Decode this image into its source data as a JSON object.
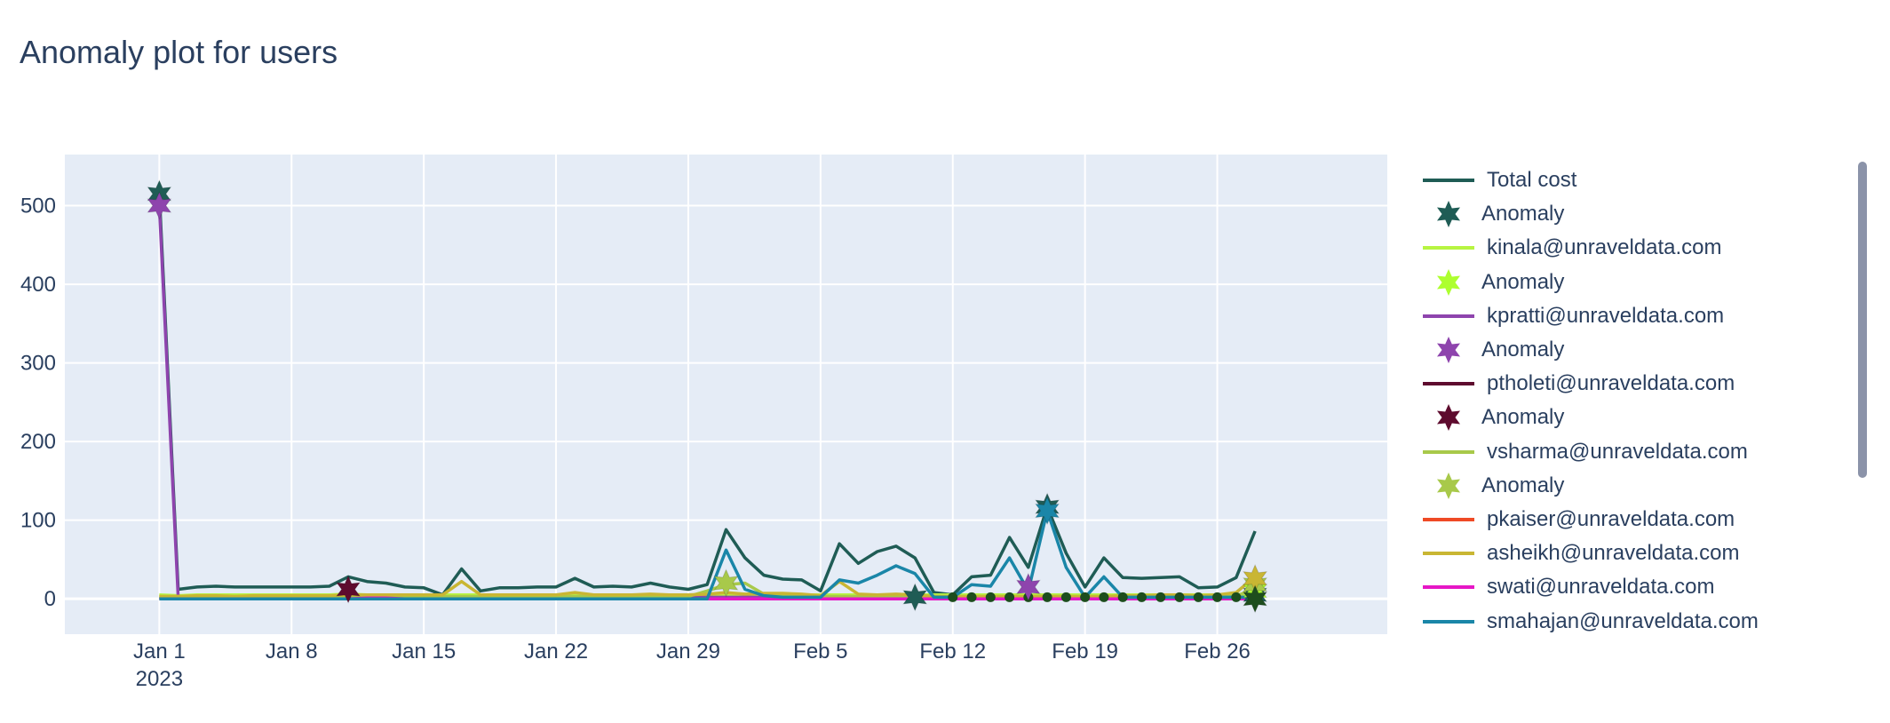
{
  "chart_data": {
    "type": "line",
    "title": "Anomaly plot for users",
    "xlabel": "",
    "ylabel": "",
    "x_start": "2023-01-01",
    "x_end": "2023-02-28",
    "xlim": [
      "2022-12-27",
      "2023-03-07"
    ],
    "ylim": [
      -45,
      565
    ],
    "x_ticks": [
      {
        "date": "2023-01-01",
        "label": "Jan 1",
        "sublabel": "2023"
      },
      {
        "date": "2023-01-08",
        "label": "Jan 8"
      },
      {
        "date": "2023-01-15",
        "label": "Jan 15"
      },
      {
        "date": "2023-01-22",
        "label": "Jan 22"
      },
      {
        "date": "2023-01-29",
        "label": "Jan 29"
      },
      {
        "date": "2023-02-05",
        "label": "Feb 5"
      },
      {
        "date": "2023-02-12",
        "label": "Feb 12"
      },
      {
        "date": "2023-02-19",
        "label": "Feb 19"
      },
      {
        "date": "2023-02-26",
        "label": "Feb 26"
      }
    ],
    "y_ticks": [
      0,
      100,
      200,
      300,
      400,
      500
    ],
    "grid": true,
    "legend_position": "right",
    "series": [
      {
        "name": "Total cost",
        "color": "#1f5c55",
        "values": [
          515,
          12,
          15,
          16,
          15,
          15,
          15,
          15,
          15,
          16,
          28,
          22,
          20,
          15,
          14,
          5,
          38,
          10,
          14,
          14,
          15,
          15,
          26,
          15,
          16,
          15,
          20,
          15,
          12,
          18,
          88,
          52,
          30,
          25,
          24,
          10,
          70,
          45,
          60,
          67,
          52,
          8,
          5,
          28,
          30,
          78,
          40,
          117,
          58,
          15,
          52,
          27,
          26,
          27,
          28,
          14,
          15,
          27,
          86
        ]
      },
      {
        "name": "kinala@unraveldata.com",
        "color": "#b7f542",
        "values": [
          5,
          4,
          5,
          5,
          5,
          5,
          5,
          5,
          5,
          5,
          6,
          5,
          5,
          5,
          5,
          5,
          5,
          5,
          5,
          5,
          5,
          5,
          5,
          5,
          5,
          5,
          5,
          5,
          5,
          5,
          5,
          5,
          5,
          5,
          5,
          5,
          5,
          5,
          5,
          5,
          5,
          5,
          5,
          5,
          5,
          5,
          5,
          5,
          5,
          5,
          5,
          5,
          5,
          5,
          5,
          5,
          5,
          5,
          8
        ]
      },
      {
        "name": "kpratti@unraveldata.com",
        "color": "#8e44ad",
        "values": [
          500,
          2,
          2,
          2,
          2,
          2,
          2,
          2,
          2,
          2,
          2,
          2,
          2,
          2,
          2,
          2,
          2,
          2,
          2,
          2,
          2,
          2,
          2,
          2,
          2,
          2,
          2,
          2,
          2,
          2,
          2,
          2,
          2,
          2,
          2,
          2,
          2,
          2,
          2,
          2,
          2,
          2,
          2,
          2,
          2,
          2,
          2,
          2,
          2,
          2,
          2,
          2,
          2,
          2,
          2,
          2,
          2,
          2,
          2
        ]
      },
      {
        "name": "ptholeti@unraveldata.com",
        "color": "#5e0b2e",
        "values": [
          2,
          0,
          0,
          0,
          0,
          0,
          0,
          0,
          0,
          0,
          0,
          0,
          0,
          0,
          0,
          0,
          0,
          0,
          0,
          0,
          0,
          0,
          0,
          0,
          0,
          0,
          0,
          0,
          0,
          0,
          0,
          0,
          0,
          0,
          0,
          0,
          0,
          0,
          0,
          0,
          0,
          0,
          0,
          0,
          0,
          0,
          0,
          0,
          0,
          0,
          0,
          0,
          0,
          0,
          0,
          0,
          0,
          0,
          0
        ]
      },
      {
        "name": "vsharma@unraveldata.com",
        "color": "#a8c94a",
        "values": [
          3,
          3,
          3,
          3,
          3,
          3,
          3,
          3,
          3,
          3,
          4,
          3,
          3,
          3,
          3,
          3,
          3,
          3,
          3,
          3,
          3,
          3,
          3,
          3,
          3,
          3,
          3,
          3,
          3,
          10,
          18,
          20,
          6,
          4,
          3,
          3,
          3,
          3,
          3,
          3,
          3,
          3,
          3,
          3,
          3,
          3,
          3,
          3,
          3,
          3,
          3,
          3,
          3,
          3,
          3,
          3,
          3,
          3,
          14
        ]
      },
      {
        "name": "pkaiser@unraveldata.com",
        "color": "#ef4a25",
        "values": [
          0,
          0,
          0,
          0,
          0,
          0,
          0,
          0,
          0,
          0,
          0,
          0,
          0,
          0,
          0,
          0,
          0,
          0,
          0,
          0,
          0,
          0,
          0,
          0,
          0,
          0,
          0,
          0,
          0,
          0,
          0,
          0,
          0,
          0,
          0,
          0,
          0,
          0,
          0,
          0,
          0,
          0,
          0,
          0,
          0,
          0,
          0,
          0,
          0,
          0,
          0,
          0,
          0,
          0,
          0,
          0,
          0,
          0,
          0
        ]
      },
      {
        "name": "asheikh@unraveldata.com",
        "color": "#c9b633",
        "values": [
          3,
          3,
          4,
          4,
          3,
          4,
          4,
          4,
          4,
          4,
          5,
          5,
          5,
          5,
          5,
          5,
          22,
          5,
          5,
          5,
          5,
          5,
          8,
          5,
          5,
          5,
          6,
          5,
          5,
          6,
          8,
          6,
          7,
          7,
          6,
          4,
          22,
          6,
          5,
          6,
          5,
          3,
          3,
          3,
          3,
          3,
          3,
          3,
          3,
          3,
          3,
          4,
          4,
          5,
          5,
          4,
          5,
          8,
          28
        ]
      },
      {
        "name": "swati@unraveldata.com",
        "color": "#e617c6",
        "values": [
          0,
          0,
          0,
          0,
          0,
          0,
          0,
          0,
          0,
          0,
          0,
          1,
          1,
          0,
          0,
          0,
          0,
          0,
          0,
          0,
          0,
          0,
          0,
          0,
          0,
          0,
          0,
          0,
          0,
          0,
          0,
          0,
          0,
          0,
          0,
          0,
          0,
          0,
          0,
          0,
          0,
          0,
          0,
          0,
          0,
          0,
          0,
          0,
          0,
          0,
          0,
          0,
          0,
          0,
          0,
          0,
          0,
          0,
          0
        ]
      },
      {
        "name": "smahajan@unraveldata.com",
        "color": "#1a86a8",
        "values": [
          0,
          0,
          0,
          0,
          0,
          0,
          0,
          0,
          0,
          0,
          0,
          0,
          0,
          0,
          0,
          0,
          0,
          0,
          0,
          0,
          0,
          0,
          0,
          0,
          0,
          0,
          0,
          0,
          0,
          0,
          62,
          12,
          4,
          2,
          2,
          2,
          24,
          20,
          30,
          42,
          32,
          2,
          2,
          18,
          16,
          52,
          10,
          112,
          40,
          2,
          28,
          2,
          2,
          2,
          2,
          2,
          2,
          2,
          2
        ]
      }
    ],
    "anomalies": [
      {
        "legend": "Anomaly",
        "color": "#1f5c55",
        "dates": [
          "2023-01-01",
          "2023-02-10",
          "2023-02-17",
          "2023-02-28"
        ],
        "values": [
          515,
          2,
          117,
          5
        ]
      },
      {
        "legend": "Anomaly",
        "color": "#adff2f",
        "dates": [
          "2023-02-28"
        ],
        "values": [
          10
        ]
      },
      {
        "legend": "Anomaly",
        "color": "#8e44ad",
        "dates": [
          "2023-01-01",
          "2023-02-16"
        ],
        "values": [
          500,
          15
        ]
      },
      {
        "legend": "Anomaly",
        "color": "#5e0b2e",
        "dates": [
          "2023-01-11"
        ],
        "values": [
          12
        ]
      },
      {
        "legend": "Anomaly",
        "color": "#a8c94a",
        "dates": [
          "2023-01-31",
          "2023-02-28"
        ],
        "values": [
          20,
          18
        ]
      },
      {
        "legend": "",
        "color": "#c9b633",
        "dates": [
          "2023-02-28"
        ],
        "values": [
          26
        ]
      },
      {
        "legend": "",
        "color": "#1a86a8",
        "dates": [
          "2023-02-17"
        ],
        "values": [
          112
        ]
      },
      {
        "legend": "",
        "color": "#1d4d1d",
        "dates": [
          "2023-02-28"
        ],
        "values": [
          0
        ]
      }
    ],
    "baseline_dots": {
      "color": "#1d4d1d",
      "dates": [
        "2023-02-12",
        "2023-02-13",
        "2023-02-14",
        "2023-02-15",
        "2023-02-16",
        "2023-02-17",
        "2023-02-18",
        "2023-02-19",
        "2023-02-20",
        "2023-02-21",
        "2023-02-22",
        "2023-02-23",
        "2023-02-24",
        "2023-02-25",
        "2023-02-26",
        "2023-02-27"
      ],
      "value": 2
    }
  },
  "legend_items": [
    {
      "kind": "line",
      "label": "Total cost",
      "color": "#1f5c55"
    },
    {
      "kind": "marker",
      "label": "Anomaly",
      "color": "#1f5c55"
    },
    {
      "kind": "line",
      "label": "kinala@unraveldata.com",
      "color": "#b7f542"
    },
    {
      "kind": "marker",
      "label": "Anomaly",
      "color": "#adff2f"
    },
    {
      "kind": "line",
      "label": "kpratti@unraveldata.com",
      "color": "#8e44ad"
    },
    {
      "kind": "marker",
      "label": "Anomaly",
      "color": "#8e44ad"
    },
    {
      "kind": "line",
      "label": "ptholeti@unraveldata.com",
      "color": "#5e0b2e"
    },
    {
      "kind": "marker",
      "label": "Anomaly",
      "color": "#5e0b2e"
    },
    {
      "kind": "line",
      "label": "vsharma@unraveldata.com",
      "color": "#a8c94a"
    },
    {
      "kind": "marker",
      "label": "Anomaly",
      "color": "#a8c94a"
    },
    {
      "kind": "line",
      "label": "pkaiser@unraveldata.com",
      "color": "#ef4a25"
    },
    {
      "kind": "line",
      "label": "asheikh@unraveldata.com",
      "color": "#c9b633"
    },
    {
      "kind": "line",
      "label": "swati@unraveldata.com",
      "color": "#e617c6"
    },
    {
      "kind": "line",
      "label": "smahajan@unraveldata.com",
      "color": "#1a86a8"
    }
  ]
}
